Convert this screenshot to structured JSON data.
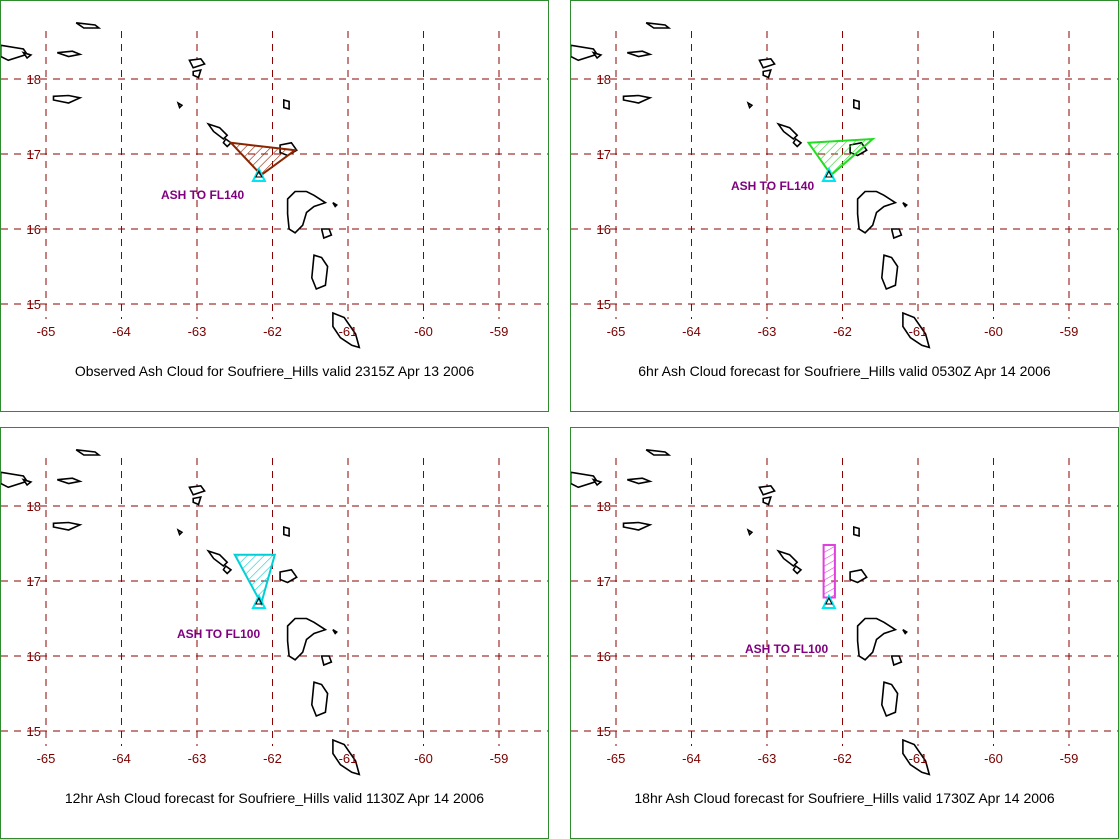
{
  "colors": {
    "grid": "#8b0000",
    "tick_text": "#7a0000",
    "label_text": "#800080",
    "border": "#2e8b2e",
    "volcano_marker": "#00e5ee"
  },
  "axes": {
    "lon_ticks": [
      "-65",
      "-64",
      "-63",
      "-62",
      "-61",
      "-60",
      "-59"
    ],
    "lat_ticks": [
      "18",
      "17",
      "16",
      "15"
    ]
  },
  "panels": [
    {
      "caption": "Observed Ash Cloud for Soufriere_Hills valid 2315Z Apr 13 2006",
      "ash_label": "ASH TO FL140",
      "cloud_color": "#8b2500",
      "cloud_shape": "observed-triangle"
    },
    {
      "caption": "6hr Ash Cloud forecast for Soufriere_Hills valid 0530Z Apr 14 2006",
      "ash_label": "ASH TO FL140",
      "cloud_color": "#22dd22",
      "cloud_shape": "forecast-6hr-triangle"
    },
    {
      "caption": "12hr Ash Cloud forecast for Soufriere_Hills valid 1130Z Apr 14 2006",
      "ash_label": "ASH TO FL100",
      "cloud_color": "#00cfd6",
      "cloud_shape": "forecast-12hr-wedge"
    },
    {
      "caption": "18hr Ash Cloud forecast for Soufriere_Hills valid 1730Z Apr 14 2006",
      "ash_label": "ASH TO FL100",
      "cloud_color": "#e040e0",
      "cloud_shape": "forecast-18hr-strip"
    }
  ]
}
